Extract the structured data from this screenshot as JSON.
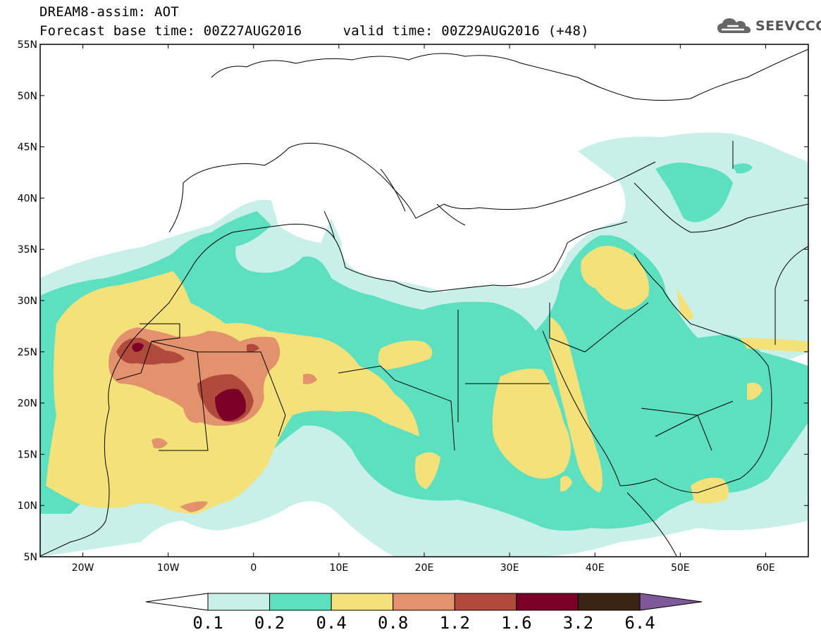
{
  "title": {
    "line1": "DREAM8-assim: AOT",
    "line2": "Forecast base time: 00Z27AUG2016     valid time: 00Z29AUG2016 (+48)"
  },
  "logo": {
    "text": "SEEVCCC",
    "icon": "cloud-icon"
  },
  "map": {
    "lon_range": [
      -25,
      65
    ],
    "lat_range": [
      5,
      55
    ],
    "lat_ticks": [
      "5N",
      "10N",
      "15N",
      "20N",
      "25N",
      "30N",
      "35N",
      "40N",
      "45N",
      "50N",
      "55N"
    ],
    "lon_ticks": [
      "20W",
      "10W",
      "0",
      "10E",
      "20E",
      "30E",
      "40E",
      "50E",
      "60E"
    ],
    "background_color": "#ffffff",
    "border_color": "#000000"
  },
  "colorbar": {
    "levels": [
      "0.1",
      "0.2",
      "0.4",
      "0.8",
      "1.2",
      "1.6",
      "3.2",
      "6.4"
    ],
    "under_color": "#ffffff",
    "colors": [
      "#c8f0e8",
      "#5ce0c0",
      "#f5e17a",
      "#e2926c",
      "#b04a3c",
      "#7a0028",
      "#3a2514"
    ],
    "over_color": "#7e5a9b"
  }
}
